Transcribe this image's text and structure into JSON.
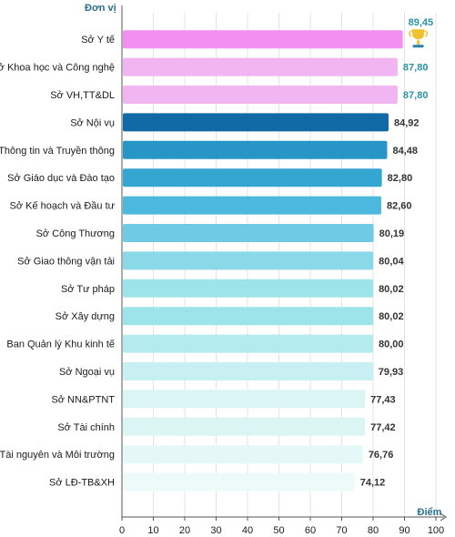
{
  "chart_data": {
    "type": "bar",
    "orientation": "horizontal",
    "ylabel": "Đơn vị",
    "xlabel": "Điểm",
    "xlim": [
      0,
      100
    ],
    "ticks": [
      "0",
      "10",
      "20",
      "30",
      "40",
      "50",
      "60",
      "70",
      "80",
      "90",
      "100"
    ],
    "grid": true,
    "categories": [
      "Sở Y tế",
      "Sở Khoa học và Công nghệ",
      "Sở VH,TT&DL",
      "Sở Nội vụ",
      "Sở Thông tin và Truyền thông",
      "Sở Giáo dục và Đào tạo",
      "Sở Kế hoạch và Đầu tư",
      "Sở Công Thương",
      "Sở Giao thông vận tải",
      "Sở Tư pháp",
      "Sở Xây dựng",
      "Ban Quản lý Khu kinh tế",
      "Sở Ngoại vụ",
      "Sở NN&PTNT",
      "Sở Tài chính",
      "Sở Tài nguyên và Môi trường",
      "Sở LĐ-TB&XH"
    ],
    "values": [
      89.45,
      87.8,
      87.8,
      84.92,
      84.48,
      82.8,
      82.6,
      80.19,
      80.04,
      80.02,
      80.02,
      80.0,
      79.93,
      77.43,
      77.42,
      76.76,
      74.12
    ],
    "value_labels": [
      "89,45",
      "87,80",
      "87,80",
      "84,92",
      "84,48",
      "82,80",
      "82,60",
      "80,19",
      "80,04",
      "80,02",
      "80,02",
      "80,00",
      "79,93",
      "77,43",
      "77,42",
      "76,76",
      "74,12"
    ],
    "bar_colors": [
      "#f28ff0",
      "#f1b5f2",
      "#f1b5f2",
      "#0f6aa6",
      "#2796c6",
      "#35a6d2",
      "#4db8dd",
      "#6fcbe4",
      "#8ad9e8",
      "#9de3ea",
      "#9de3ea",
      "#b3ebee",
      "#c8f0f2",
      "#dbf5f5",
      "#dbf5f5",
      "#e5f8f8",
      "#eefafa"
    ],
    "value_label_colors": [
      "#2a93a8",
      "#2a93a8",
      "#2a93a8",
      "#333333",
      "#333333",
      "#333333",
      "#333333",
      "#333333",
      "#333333",
      "#333333",
      "#333333",
      "#333333",
      "#333333",
      "#333333",
      "#333333",
      "#333333",
      "#333333"
    ],
    "top_icon": "trophy-icon",
    "top_icon_color": "#f2c12e"
  }
}
